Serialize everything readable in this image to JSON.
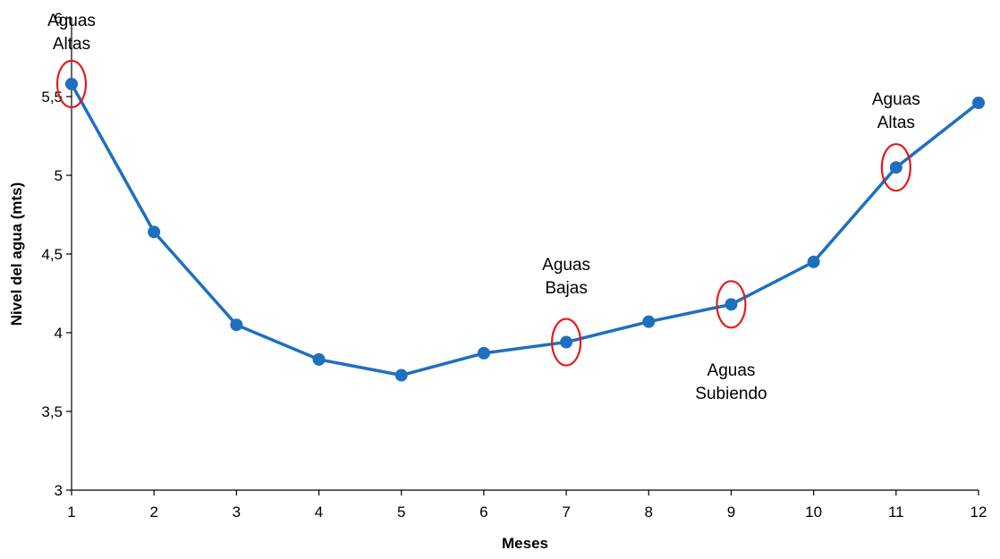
{
  "chart_data": {
    "type": "line",
    "title": "",
    "xlabel": "Meses",
    "ylabel": "Nivel del agua (mts)",
    "x": [
      1,
      2,
      3,
      4,
      5,
      6,
      7,
      8,
      9,
      10,
      11,
      12
    ],
    "x_ticks": [
      "1",
      "2",
      "3",
      "4",
      "5",
      "6",
      "7",
      "8",
      "9",
      "10",
      "11",
      "12"
    ],
    "xlim": [
      1,
      12
    ],
    "ylim": [
      3,
      6
    ],
    "y_ticks": [
      "3",
      "3,5",
      "4",
      "4,5",
      "5",
      "5,5",
      "6"
    ],
    "y_tick_values": [
      3,
      3.5,
      4,
      4.5,
      5,
      5.5,
      6
    ],
    "series": [
      {
        "values": [
          5.58,
          4.64,
          4.05,
          3.83,
          3.73,
          3.87,
          3.94,
          4.07,
          4.18,
          4.45,
          5.05,
          5.46
        ],
        "color": "#1f6fbf"
      }
    ],
    "highlight_color": "#e31b1b",
    "highlighted_x": [
      1,
      7,
      9,
      11
    ],
    "annotations": [
      {
        "line1": "Aguas",
        "line2": "Altas",
        "x": 1,
        "y": 6.05
      },
      {
        "line1": "Aguas",
        "line2": "Bajas",
        "x": 7,
        "y": 4.5
      },
      {
        "line1": "Aguas",
        "line2": "Subiendo",
        "x": 9,
        "y": 3.83
      },
      {
        "line1": "Aguas",
        "line2": "Altas",
        "x": 11,
        "y": 5.55
      }
    ],
    "grid": false,
    "legend": "none"
  }
}
